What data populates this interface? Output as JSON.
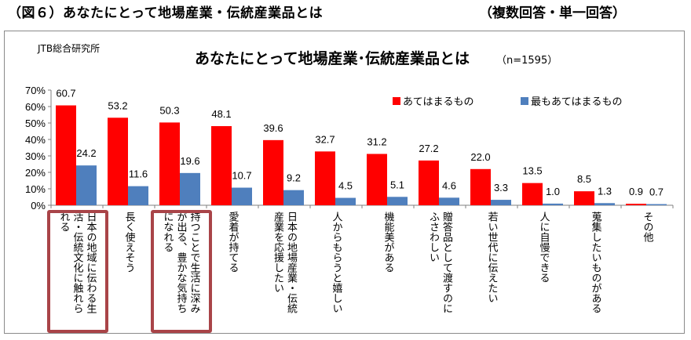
{
  "header": {
    "figure_title": "（図６）あなたにとって地場産業・伝統産業品とは",
    "note": "（複数回答・単一回答）"
  },
  "source": "JTB総合研究所",
  "colors": {
    "series1": "#ff0000",
    "series2": "#4f7fbd",
    "highlight": "#a94448",
    "frame": "#8a8a8a"
  },
  "chart_data": {
    "type": "bar",
    "title": "あなたにとって地場産業･伝統産業品とは",
    "subtitle": "（n=1595）",
    "xlabel": "",
    "ylabel": "",
    "ylim": [
      0,
      70
    ],
    "yticks": [
      "0%",
      "10%",
      "20%",
      "30%",
      "40%",
      "50%",
      "60%",
      "70%"
    ],
    "ytick_values": [
      0,
      10,
      20,
      30,
      40,
      50,
      60,
      70
    ],
    "grid": false,
    "legend_position": "top-right",
    "categories": [
      "日本の地域に伝わる生\n活・伝統文化に触れら\nれる",
      "長く使えそう",
      "持つことで生活に深み\nが出る、豊かな気持ち\nになれる",
      "愛着が持てる",
      "日本の地場産業・伝統\n産業を応援したい",
      "人からもらうと嬉しい",
      "機能美がある",
      "贈答品として渡すのに\nふさわしい",
      "若い世代に伝えたい",
      "人に自慢できる",
      "蒐集したいものがある",
      "その他"
    ],
    "highlighted_categories": [
      0,
      2
    ],
    "series": [
      {
        "name": "あてはまるもの",
        "values": [
          60.7,
          53.2,
          50.3,
          48.1,
          39.6,
          32.7,
          31.2,
          27.2,
          22.0,
          13.5,
          8.5,
          0.9
        ],
        "labels": [
          "60.7",
          "53.2",
          "50.3",
          "48.1",
          "39.6",
          "32.7",
          "31.2",
          "27.2",
          "22.0",
          "13.5",
          "8.5",
          "0.9"
        ]
      },
      {
        "name": "最もあてはまるもの",
        "values": [
          24.2,
          11.6,
          19.6,
          10.7,
          9.2,
          4.5,
          5.1,
          4.6,
          3.3,
          1.0,
          1.3,
          0.7
        ],
        "labels": [
          "24.2",
          "11.6",
          "19.6",
          "10.7",
          "9.2",
          "4.5",
          "5.1",
          "4.6",
          "3.3",
          "1.0",
          "1.3",
          "0.7"
        ]
      }
    ]
  }
}
